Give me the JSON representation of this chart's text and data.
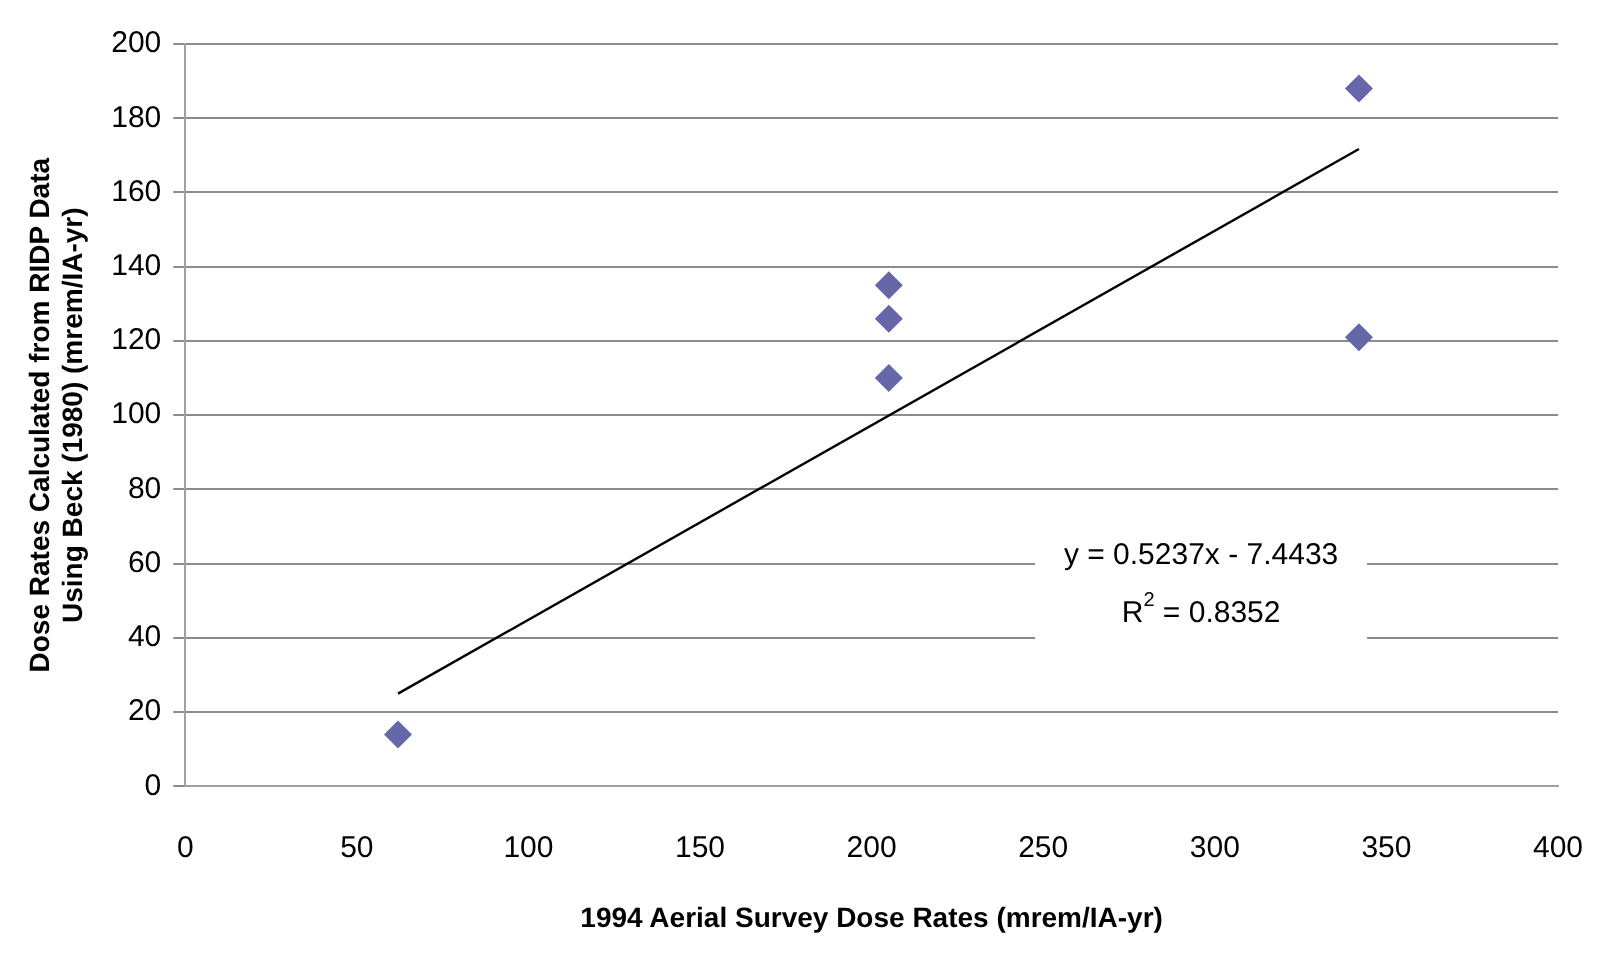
{
  "chart_data": {
    "type": "scatter",
    "xlabel": "1994 Aerial Survey Dose Rates (mrem/IA-yr)",
    "ylabel": "Dose Rates Calculated from RIDP Data Using Beck (1980) (mrem/IA-yr)",
    "x": [
      62,
      205,
      205,
      205,
      342,
      342
    ],
    "series": [
      {
        "type": "scatter",
        "color": "#6667a8",
        "marker": "diamond",
        "values": [
          14,
          135,
          126,
          110,
          188,
          121
        ]
      },
      {
        "type": "line",
        "color": "#000000",
        "x": [
          62,
          342
        ],
        "values": [
          25,
          171.7
        ]
      }
    ],
    "xlim": [
      0,
      400
    ],
    "xticks": [
      0,
      50,
      100,
      150,
      200,
      250,
      300,
      350,
      400
    ],
    "ylim": [
      0,
      200
    ],
    "yticks": [
      0,
      20,
      40,
      60,
      80,
      100,
      120,
      140,
      160,
      180,
      200
    ],
    "grid": "y",
    "legend": false,
    "annotations": [
      "y = 0.5237x - 7.4433",
      "R$^{2}$ = 0.8352"
    ]
  }
}
